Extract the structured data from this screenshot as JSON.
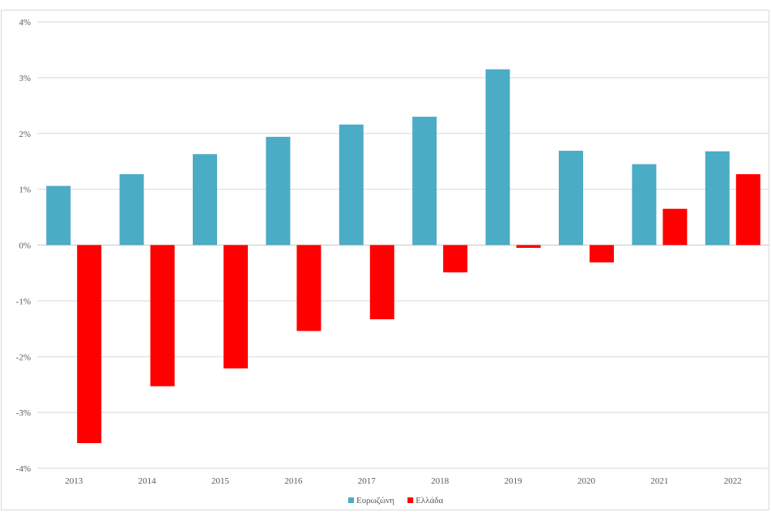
{
  "chart_data": {
    "type": "bar",
    "title": "",
    "xlabel": "",
    "ylabel": "",
    "categories": [
      "2013",
      "2014",
      "2015",
      "2016",
      "2017",
      "2018",
      "2019",
      "2020",
      "2021",
      "2022"
    ],
    "series": [
      {
        "name": "Ευρωζώνη",
        "color": "#4bacc6",
        "values": [
          1.06,
          1.27,
          1.63,
          1.94,
          2.16,
          2.3,
          3.15,
          1.69,
          1.45,
          1.68
        ]
      },
      {
        "name": "Ελλάδα",
        "color": "#ff0000",
        "values": [
          -3.55,
          -2.53,
          -2.21,
          -1.54,
          -1.33,
          -0.49,
          -0.05,
          -0.31,
          0.65,
          1.27
        ]
      }
    ],
    "ylim": [
      -4,
      4
    ],
    "yticks": [
      4,
      3,
      2,
      1,
      0,
      -1,
      -2,
      -3,
      -4
    ],
    "ytick_labels": [
      "4%",
      "3%",
      "2%",
      "1%",
      "0%",
      "-1%",
      "-2%",
      "-3%",
      "-4%"
    ],
    "grid": true,
    "legend_position": "bottom"
  }
}
